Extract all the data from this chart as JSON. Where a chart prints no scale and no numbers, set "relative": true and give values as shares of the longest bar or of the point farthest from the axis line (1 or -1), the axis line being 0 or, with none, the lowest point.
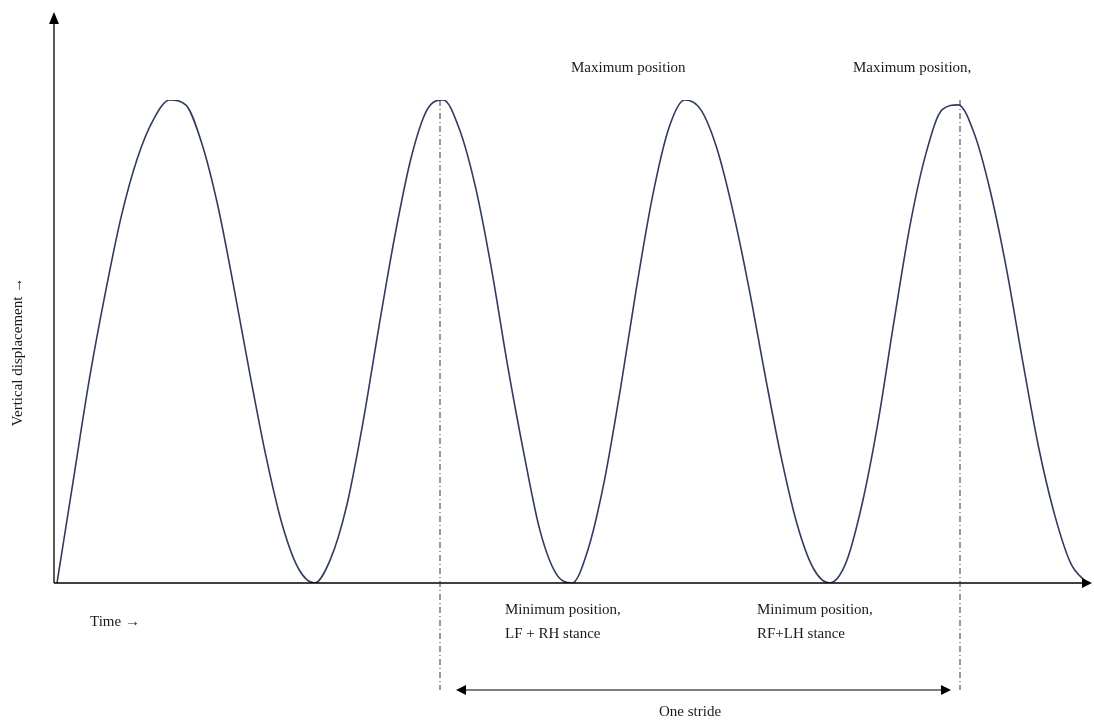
{
  "chart_data": {
    "type": "line",
    "relative": true,
    "xlabel": "Time →",
    "ylabel": "Vertical displacement →",
    "marker": "none",
    "categories": [
      null,
      null,
      null,
      null,
      null,
      null,
      null,
      null,
      null,
      null,
      null,
      null,
      null,
      null,
      null,
      null,
      null,
      null,
      null,
      null,
      null,
      null,
      null,
      null,
      null,
      null,
      null,
      null,
      null,
      null,
      null,
      null,
      null,
      null,
      null,
      null,
      null,
      null,
      null,
      null,
      null,
      null,
      null,
      null,
      null,
      null,
      null,
      null,
      null,
      null,
      null,
      null,
      null,
      null,
      null,
      null,
      null,
      null,
      null,
      null,
      null,
      null,
      null,
      null,
      null
    ],
    "series": [
      {
        "color": "#2e3a6e",
        "values": [
          0,
          0.21,
          0.42,
          0.6,
          0.76,
          0.88,
          0.96,
          1,
          0.99,
          0.91,
          0.78,
          0.61,
          0.43,
          0.26,
          0.12,
          0.03,
          0,
          0.05,
          0.16,
          0.33,
          0.53,
          0.72,
          0.88,
          0.98,
          1,
          0.94,
          0.82,
          0.65,
          0.45,
          0.27,
          0.11,
          0.02,
          0,
          0.07,
          0.21,
          0.4,
          0.61,
          0.8,
          0.94,
          1,
          0.98,
          0.9,
          0.77,
          0.61,
          0.43,
          0.26,
          0.12,
          0.03,
          0,
          0.04,
          0.16,
          0.33,
          0.54,
          0.74,
          0.89,
          0.98,
          0.99,
          0.93,
          0.81,
          0.65,
          0.46,
          0.28,
          0.14,
          0.04,
          0
        ]
      }
    ],
    "annotations": [
      "Maximum position",
      "Maximum position,",
      "Minimum position,\nLF + RH stance",
      "Minimum position,\nRF+LH stance",
      "One stride"
    ]
  }
}
